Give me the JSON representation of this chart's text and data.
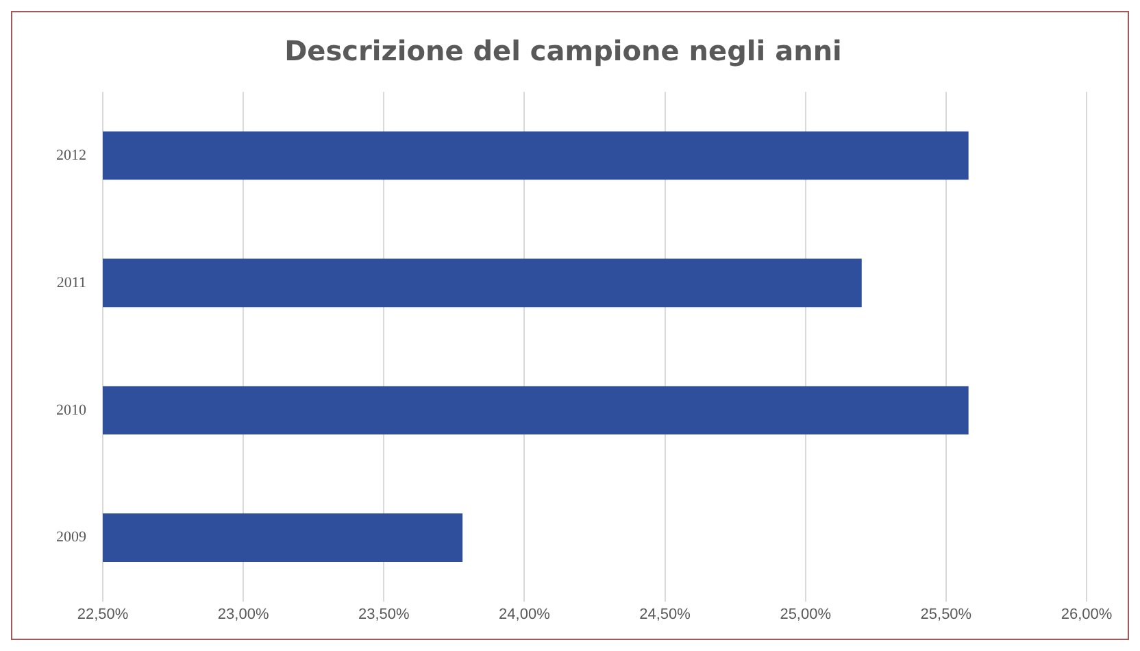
{
  "chart_data": {
    "type": "bar",
    "orientation": "horizontal",
    "title": "Descrizione del campione negli anni",
    "categories": [
      "2012",
      "2011",
      "2010",
      "2009"
    ],
    "values": [
      25.58,
      25.2,
      25.58,
      23.78
    ],
    "color": "#2f4f9c",
    "xlim": [
      22.5,
      26
    ],
    "xticks": [
      {
        "value": 22.5,
        "label": "22,50%"
      },
      {
        "value": 23,
        "label": "23,00%"
      },
      {
        "value": 23.5,
        "label": "23,50%"
      },
      {
        "value": 24,
        "label": "24,00%"
      },
      {
        "value": 24.5,
        "label": "24,50%"
      },
      {
        "value": 25,
        "label": "25,00%"
      },
      {
        "value": 25.5,
        "label": "25,50%"
      },
      {
        "value": 26,
        "label": "26,00%"
      }
    ],
    "grid": "x"
  }
}
